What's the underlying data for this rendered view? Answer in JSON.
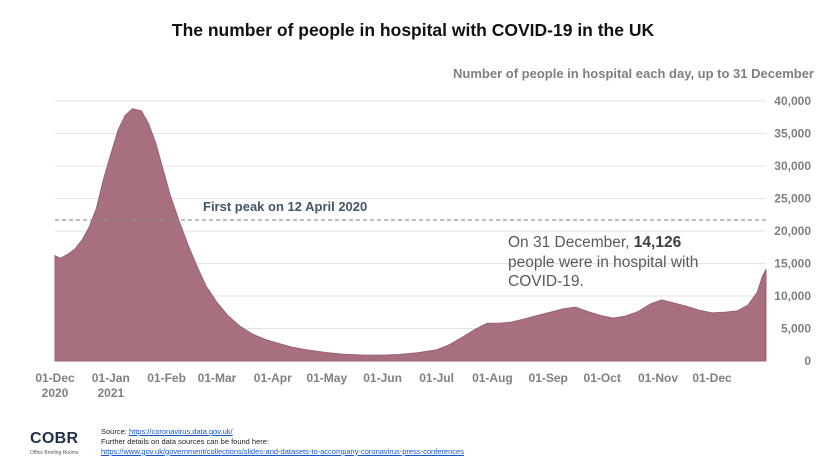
{
  "title": "The number of people in hospital with COVID-19 in the UK",
  "subtitle": "Number of people in hospital each day, up to 31 December",
  "annotation_peak": "First peak on 12 April 2020",
  "annotation_note": {
    "prefix": "On 31 December, ",
    "value": "14,126",
    "suffix": "people were in hospital with COVID-19."
  },
  "footer": {
    "logo": "COBR",
    "logo_sub": "Office Briefing Rooms",
    "source_label": "Source: ",
    "source_link": "https://coronavirus.data.gov.uk/",
    "further_text": "Further details on data sources can be found here:",
    "further_link": "https://www.gov.uk/government/collections/slides-and-datasets-to-accompany-coronavirus-press-conferences"
  },
  "colors": {
    "area_fill": "#a8707e",
    "area_stroke": "#9b6172",
    "grid": "#e3e3e3",
    "peak_line": "#8c8c8c"
  },
  "chart_data": {
    "type": "area",
    "title": "The number of people in hospital with COVID-19 in the UK",
    "subtitle": "Number of people in hospital each day, up to 31 December",
    "x_start": "2020-12-01",
    "x_end": "2021-12-31",
    "x_ticks": [
      {
        "date": "2020-12-01",
        "label": "01-Dec",
        "label2": "2020"
      },
      {
        "date": "2021-01-01",
        "label": "01-Jan",
        "label2": "2021"
      },
      {
        "date": "2021-02-01",
        "label": "01-Feb"
      },
      {
        "date": "2021-03-01",
        "label": "01-Mar"
      },
      {
        "date": "2021-04-01",
        "label": "01-Apr"
      },
      {
        "date": "2021-05-01",
        "label": "01-May"
      },
      {
        "date": "2021-06-01",
        "label": "01-Jun"
      },
      {
        "date": "2021-07-01",
        "label": "01-Jul"
      },
      {
        "date": "2021-08-01",
        "label": "01-Aug"
      },
      {
        "date": "2021-09-01",
        "label": "01-Sep"
      },
      {
        "date": "2021-10-01",
        "label": "01-Oct"
      },
      {
        "date": "2021-11-01",
        "label": "01-Nov"
      },
      {
        "date": "2021-12-01",
        "label": "01-Dec"
      }
    ],
    "y_ticks": [
      {
        "value": 0,
        "label": "0"
      },
      {
        "value": 5000,
        "label": "5,000"
      },
      {
        "value": 10000,
        "label": "10,000"
      },
      {
        "value": 15000,
        "label": "15,000"
      },
      {
        "value": 20000,
        "label": "20,000"
      },
      {
        "value": 25000,
        "label": "25,000"
      },
      {
        "value": 30000,
        "label": "30,000"
      },
      {
        "value": 35000,
        "label": "35,000"
      },
      {
        "value": 40000,
        "label": "40,000"
      }
    ],
    "ylim": [
      0,
      40000
    ],
    "grid": true,
    "reference_line": {
      "value": 21700,
      "label": "First peak on 12 April 2020"
    },
    "series": [
      {
        "points": [
          [
            "2020-12-01",
            16200
          ],
          [
            "2020-12-04",
            15800
          ],
          [
            "2020-12-08",
            16400
          ],
          [
            "2020-12-12",
            17200
          ],
          [
            "2020-12-16",
            18600
          ],
          [
            "2020-12-20",
            20600
          ],
          [
            "2020-12-24",
            23500
          ],
          [
            "2020-12-28",
            28000
          ],
          [
            "2021-01-01",
            31800
          ],
          [
            "2021-01-05",
            35500
          ],
          [
            "2021-01-09",
            37800
          ],
          [
            "2021-01-13",
            38800
          ],
          [
            "2021-01-18",
            38500
          ],
          [
            "2021-01-22",
            36500
          ],
          [
            "2021-01-26",
            33500
          ],
          [
            "2021-01-30",
            29500
          ],
          [
            "2021-02-03",
            25500
          ],
          [
            "2021-02-08",
            21500
          ],
          [
            "2021-02-13",
            17800
          ],
          [
            "2021-02-18",
            14500
          ],
          [
            "2021-02-23",
            11500
          ],
          [
            "2021-03-01",
            9000
          ],
          [
            "2021-03-07",
            7000
          ],
          [
            "2021-03-14",
            5300
          ],
          [
            "2021-03-21",
            4100
          ],
          [
            "2021-03-28",
            3300
          ],
          [
            "2021-04-04",
            2700
          ],
          [
            "2021-04-12",
            2100
          ],
          [
            "2021-04-20",
            1700
          ],
          [
            "2021-05-01",
            1300
          ],
          [
            "2021-05-10",
            1050
          ],
          [
            "2021-05-20",
            920
          ],
          [
            "2021-06-01",
            900
          ],
          [
            "2021-06-10",
            1000
          ],
          [
            "2021-06-20",
            1250
          ],
          [
            "2021-07-01",
            1700
          ],
          [
            "2021-07-08",
            2500
          ],
          [
            "2021-07-15",
            3600
          ],
          [
            "2021-07-22",
            4800
          ],
          [
            "2021-07-29",
            5800
          ],
          [
            "2021-08-05",
            5800
          ],
          [
            "2021-08-12",
            6000
          ],
          [
            "2021-08-19",
            6500
          ],
          [
            "2021-08-26",
            7000
          ],
          [
            "2021-09-02",
            7500
          ],
          [
            "2021-09-09",
            8000
          ],
          [
            "2021-09-16",
            8300
          ],
          [
            "2021-09-23",
            7600
          ],
          [
            "2021-09-30",
            7000
          ],
          [
            "2021-10-07",
            6600
          ],
          [
            "2021-10-14",
            6900
          ],
          [
            "2021-10-21",
            7600
          ],
          [
            "2021-10-28",
            8800
          ],
          [
            "2021-11-03",
            9400
          ],
          [
            "2021-11-10",
            8900
          ],
          [
            "2021-11-17",
            8400
          ],
          [
            "2021-11-24",
            7800
          ],
          [
            "2021-12-01",
            7400
          ],
          [
            "2021-12-08",
            7500
          ],
          [
            "2021-12-15",
            7700
          ],
          [
            "2021-12-21",
            8600
          ],
          [
            "2021-12-26",
            10500
          ],
          [
            "2021-12-29",
            13000
          ],
          [
            "2021-12-31",
            14126
          ]
        ]
      }
    ]
  }
}
